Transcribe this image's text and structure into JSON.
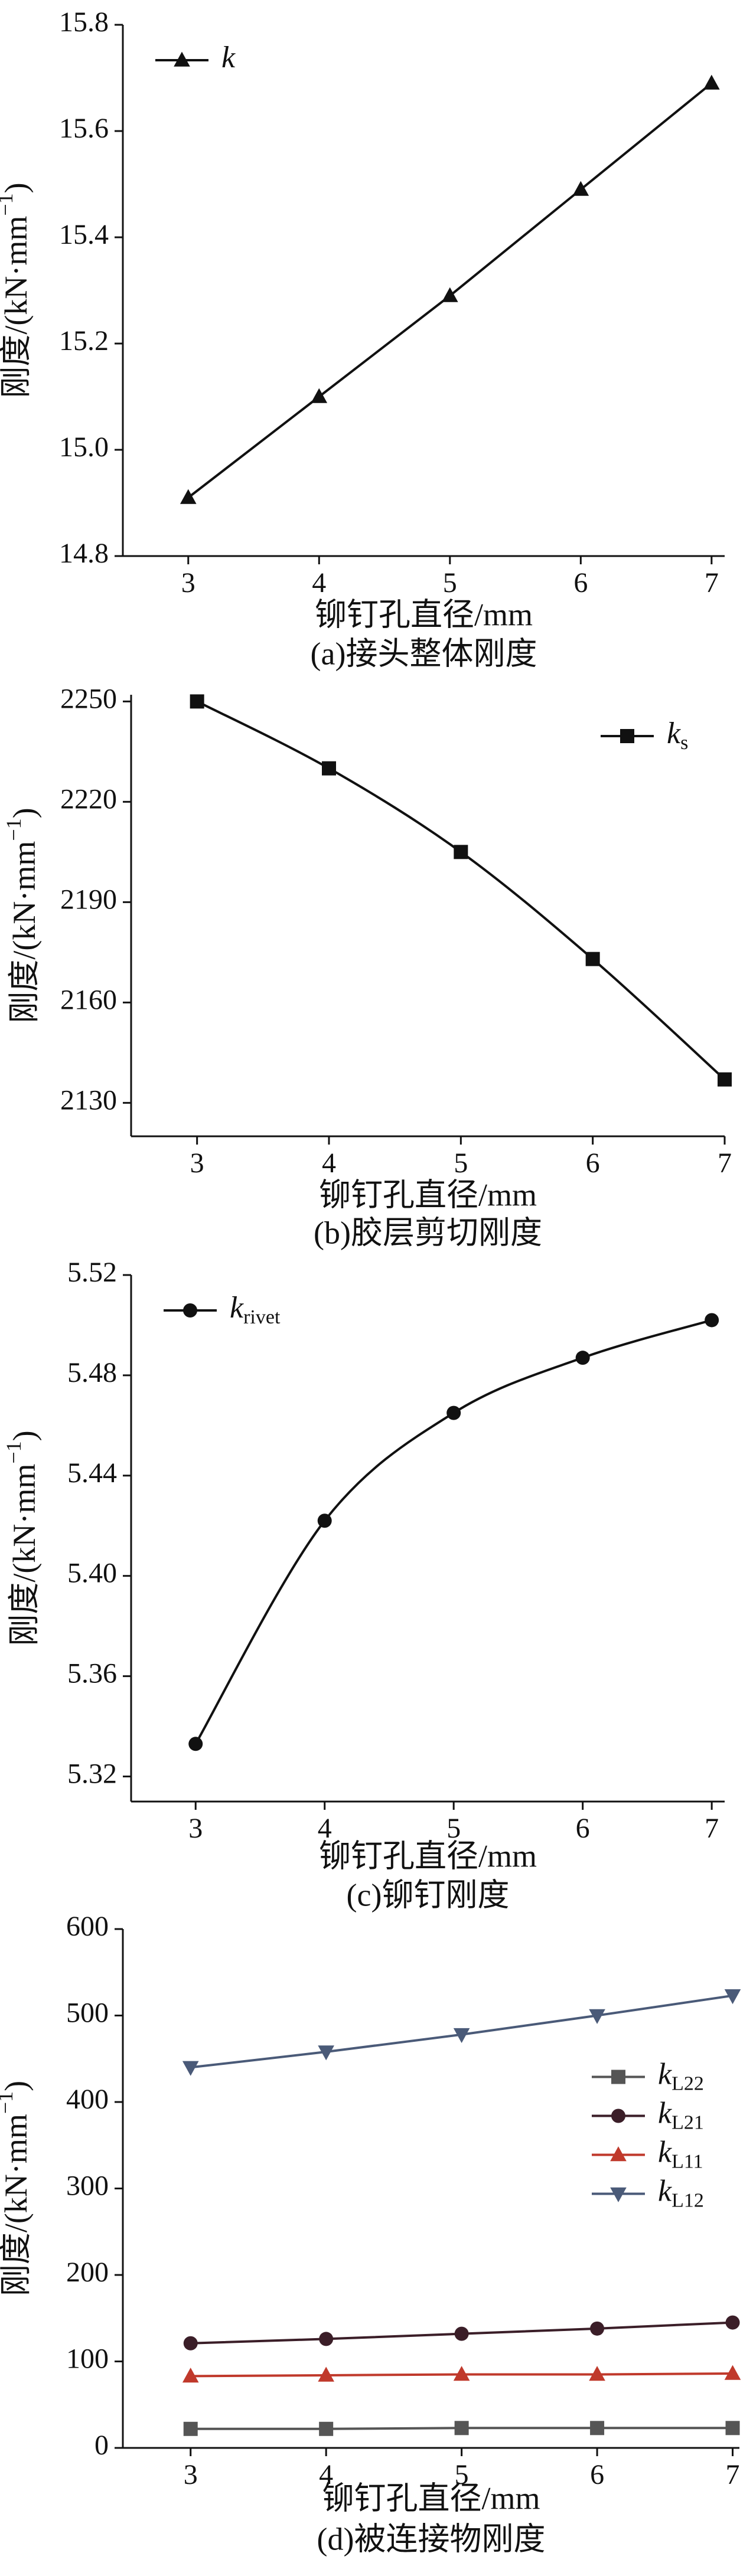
{
  "chart_data": [
    {
      "type": "line",
      "caption": "(a)接头整体刚度",
      "xlabel": "铆钉孔直径/mm",
      "ylabel": "刚度/(kN·mm",
      "ylabel_sup": "−1",
      "ylabel_end": ")",
      "x": [
        3,
        4,
        5,
        6,
        7
      ],
      "xlim": [
        2.5,
        7.1
      ],
      "xticks": [
        3,
        4,
        5,
        6,
        7
      ],
      "ylim": [
        14.8,
        15.8
      ],
      "yticks": [
        {
          "value": 14.8,
          "label": "14.8"
        },
        {
          "value": 15.0,
          "label": "15.0"
        },
        {
          "value": 15.2,
          "label": "15.2"
        },
        {
          "value": 15.4,
          "label": "15.4"
        },
        {
          "value": 15.6,
          "label": "15.6"
        },
        {
          "value": 15.8,
          "label": "15.8"
        }
      ],
      "legend": "upper left",
      "smooth": false,
      "series": [
        {
          "name": "k",
          "color": "#111111",
          "marker": "^",
          "values": [
            14.91,
            15.1,
            15.29,
            15.49,
            15.69
          ]
        }
      ]
    },
    {
      "type": "line",
      "caption": "(b)胶层剪切刚度",
      "xlabel": "铆钉孔直径/mm",
      "ylabel": "刚度/(kN·mm",
      "ylabel_sup": "−1",
      "ylabel_end": ")",
      "x": [
        3,
        4,
        5,
        6,
        7
      ],
      "xlim": [
        2.5,
        7.0
      ],
      "xticks": [
        3,
        4,
        5,
        6,
        7
      ],
      "ylim": [
        2120,
        2252
      ],
      "yticks": [
        2130,
        2160,
        2190,
        2220,
        2250
      ],
      "legend": "upper right",
      "smooth": true,
      "series": [
        {
          "name": "k",
          "subscript": "s",
          "color": "#111111",
          "marker": "s",
          "values": [
            2250,
            2230,
            2205,
            2173,
            2137
          ]
        }
      ]
    },
    {
      "type": "line",
      "caption": "(c)铆钉刚度",
      "xlabel": "铆钉孔直径/mm",
      "ylabel": "刚度/(kN·mm",
      "ylabel_sup": "−1",
      "ylabel_end": ")",
      "x": [
        3,
        4,
        5,
        6,
        7
      ],
      "xlim": [
        2.5,
        7.1
      ],
      "xticks": [
        3,
        4,
        5,
        6,
        7
      ],
      "ylim": [
        5.31,
        5.52
      ],
      "yticks": [
        {
          "value": 5.32,
          "label": "5.32"
        },
        {
          "value": 5.36,
          "label": "5.36"
        },
        {
          "value": 5.4,
          "label": "5.40"
        },
        {
          "value": 5.44,
          "label": "5.44"
        },
        {
          "value": 5.48,
          "label": "5.48"
        },
        {
          "value": 5.52,
          "label": "5.52"
        }
      ],
      "legend": "upper left",
      "smooth": true,
      "series": [
        {
          "name": "k",
          "subscript": "rivet",
          "color": "#111111",
          "marker": "o",
          "values": [
            5.333,
            5.422,
            5.465,
            5.487,
            5.502
          ]
        }
      ]
    },
    {
      "type": "line",
      "caption": "(d)被连接物刚度",
      "xlabel": "铆钉孔直径/mm",
      "ylabel": "刚度/(kN·mm",
      "ylabel_sup": "−1",
      "ylabel_end": ")",
      "x": [
        3,
        4,
        5,
        6,
        7
      ],
      "xlim": [
        2.5,
        7.05
      ],
      "xticks": [
        3,
        4,
        5,
        6,
        7
      ],
      "ylim": [
        0,
        600
      ],
      "yticks": [
        0,
        100,
        200,
        300,
        400,
        500,
        600
      ],
      "legend": "center right",
      "smooth": false,
      "series": [
        {
          "name": "k",
          "subscript": "L22",
          "color": "#555555",
          "marker": "s",
          "values": [
            22,
            22,
            23,
            23,
            23
          ]
        },
        {
          "name": "k",
          "subscript": "L21",
          "color": "#3b1e28",
          "marker": "o",
          "values": [
            121,
            126,
            132,
            138,
            145
          ]
        },
        {
          "name": "k",
          "subscript": "L11",
          "color": "#c0392b",
          "marker": "^",
          "values": [
            83,
            84,
            85,
            85,
            86
          ]
        },
        {
          "name": "k",
          "subscript": "L12",
          "color": "#4a5a78",
          "marker": "v",
          "values": [
            440,
            458,
            478,
            500,
            523
          ]
        }
      ]
    }
  ]
}
